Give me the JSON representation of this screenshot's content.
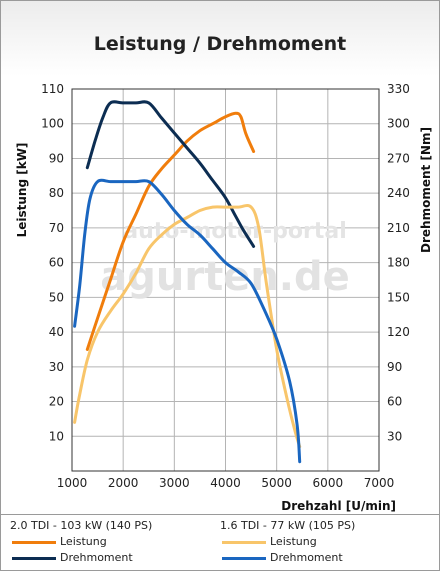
{
  "chart_data": {
    "type": "line",
    "title": "Leistung / Drehmoment",
    "xlabel": "Drehzahl [U/min]",
    "ylabel_left": "Leistung [kW]",
    "ylabel_right": "Drehmoment [Nm]",
    "xlim": [
      1000,
      7000
    ],
    "xticks": [
      1000,
      2000,
      3000,
      4000,
      5000,
      6000,
      7000
    ],
    "ylim_left": [
      0,
      110
    ],
    "yticks_left": [
      10,
      20,
      30,
      40,
      50,
      60,
      70,
      80,
      90,
      100,
      110
    ],
    "ylim_right": [
      0,
      330
    ],
    "yticks_right": [
      30,
      60,
      90,
      120,
      150,
      180,
      210,
      240,
      270,
      300,
      330
    ],
    "grid": true,
    "watermark": "auto-motor-portal agurten.de",
    "legend_groups": [
      {
        "heading": "2.0 TDI - 103 kW (140 PS)",
        "items": [
          {
            "label": "Leistung",
            "color": "#f07d0c"
          },
          {
            "label": "Drehmoment",
            "color": "#0c2d52"
          }
        ]
      },
      {
        "heading": "1.6 TDI - 77 kW (105 PS)",
        "items": [
          {
            "label": "Leistung",
            "color": "#f8c56a"
          },
          {
            "label": "Drehmoment",
            "color": "#1a66c0"
          }
        ]
      }
    ],
    "series": [
      {
        "name": "Leistung",
        "group": "2.0 TDI - 103 kW (140 PS)",
        "axis": "left",
        "color": "#f07d0c",
        "points": [
          [
            1300,
            35
          ],
          [
            1500,
            44
          ],
          [
            1750,
            55
          ],
          [
            2000,
            66
          ],
          [
            2250,
            74
          ],
          [
            2500,
            82
          ],
          [
            2750,
            87
          ],
          [
            3000,
            91
          ],
          [
            3250,
            95
          ],
          [
            3500,
            98
          ],
          [
            3750,
            100
          ],
          [
            4000,
            102
          ],
          [
            4200,
            103
          ],
          [
            4300,
            102
          ],
          [
            4400,
            97
          ],
          [
            4550,
            92
          ]
        ]
      },
      {
        "name": "Drehmoment",
        "group": "2.0 TDI - 103 kW (140 PS)",
        "axis": "right",
        "color": "#0c2d52",
        "points": [
          [
            1300,
            262
          ],
          [
            1450,
            285
          ],
          [
            1600,
            305
          ],
          [
            1750,
            318
          ],
          [
            2000,
            318
          ],
          [
            2250,
            318
          ],
          [
            2500,
            318
          ],
          [
            2750,
            305
          ],
          [
            3000,
            292
          ],
          [
            3250,
            279
          ],
          [
            3500,
            266
          ],
          [
            3750,
            251
          ],
          [
            4000,
            236
          ],
          [
            4200,
            220
          ],
          [
            4350,
            208
          ],
          [
            4550,
            194
          ]
        ]
      },
      {
        "name": "Leistung",
        "group": "1.6 TDI - 77 kW (105 PS)",
        "axis": "left",
        "color": "#f8c56a",
        "points": [
          [
            1050,
            14
          ],
          [
            1150,
            22
          ],
          [
            1300,
            32
          ],
          [
            1500,
            40
          ],
          [
            1750,
            46
          ],
          [
            2000,
            51
          ],
          [
            2250,
            57
          ],
          [
            2500,
            64
          ],
          [
            2750,
            68
          ],
          [
            3000,
            71
          ],
          [
            3250,
            73
          ],
          [
            3500,
            75
          ],
          [
            3750,
            76
          ],
          [
            4000,
            76
          ],
          [
            4250,
            76
          ],
          [
            4500,
            76
          ],
          [
            4650,
            70
          ],
          [
            4800,
            54
          ],
          [
            5000,
            35
          ],
          [
            5200,
            21
          ],
          [
            5350,
            12
          ],
          [
            5450,
            7
          ]
        ]
      },
      {
        "name": "Drehmoment",
        "group": "1.6 TDI - 77 kW (105 PS)",
        "axis": "right",
        "color": "#1a66c0",
        "points": [
          [
            1050,
            125
          ],
          [
            1150,
            160
          ],
          [
            1250,
            205
          ],
          [
            1350,
            235
          ],
          [
            1500,
            250
          ],
          [
            1750,
            250
          ],
          [
            2000,
            250
          ],
          [
            2250,
            250
          ],
          [
            2500,
            250
          ],
          [
            2750,
            239
          ],
          [
            3000,
            225
          ],
          [
            3250,
            213
          ],
          [
            3500,
            204
          ],
          [
            3750,
            192
          ],
          [
            4000,
            180
          ],
          [
            4250,
            172
          ],
          [
            4500,
            162
          ],
          [
            4750,
            140
          ],
          [
            5000,
            114
          ],
          [
            5250,
            78
          ],
          [
            5400,
            40
          ],
          [
            5450,
            8
          ]
        ]
      }
    ]
  }
}
